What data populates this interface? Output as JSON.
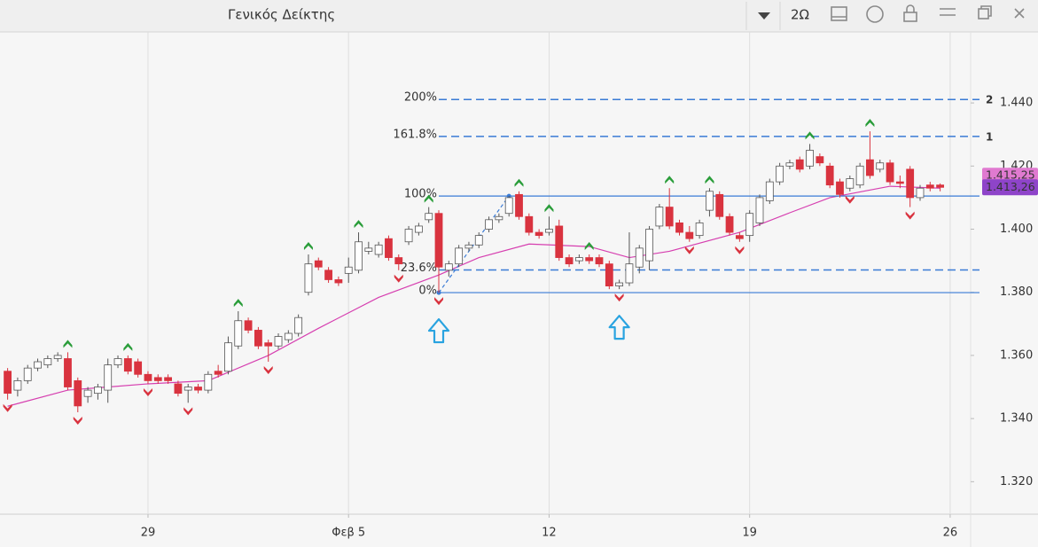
{
  "toolbar": {
    "period": "2Ω"
  },
  "chart_data": {
    "type": "candlestick",
    "title": "Γενικός Δείκτης",
    "up_color": "#ffffff",
    "down_color": "#d9333f",
    "open": [
      1.355,
      1.349,
      1.352,
      1.356,
      1.357,
      1.359,
      1.359,
      1.352,
      1.347,
      1.348,
      1.349,
      1.357,
      1.359,
      1.358,
      1.354,
      1.353,
      1.353,
      1.351,
      1.349,
      1.35,
      1.349,
      1.355,
      1.355,
      1.363,
      1.371,
      1.368,
      1.364,
      1.363,
      1.365,
      1.367,
      1.38,
      1.39,
      1.387,
      1.384,
      1.386,
      1.387,
      1.393,
      1.392,
      1.397,
      1.391,
      1.396,
      1.399,
      1.403,
      1.405,
      1.387,
      1.389,
      1.394,
      1.395,
      1.4,
      1.403,
      1.405,
      1.411,
      1.404,
      1.399,
      1.399,
      1.401,
      1.391,
      1.39,
      1.391,
      1.391,
      1.389,
      1.382,
      1.383,
      1.388,
      1.39,
      1.401,
      1.407,
      1.402,
      1.399,
      1.398,
      1.406,
      1.411,
      1.404,
      1.398,
      1.398,
      1.402,
      1.409,
      1.415,
      1.42,
      1.422,
      1.42,
      1.423,
      1.42,
      1.415,
      1.413,
      1.414,
      1.422,
      1.419,
      1.421,
      1.415,
      1.419,
      1.41,
      1.414,
      1.414
    ],
    "high": [
      1.356,
      1.353,
      1.357,
      1.359,
      1.36,
      1.361,
      1.361,
      1.353,
      1.35,
      1.351,
      1.359,
      1.36,
      1.36,
      1.359,
      1.355,
      1.354,
      1.354,
      1.352,
      1.351,
      1.351,
      1.355,
      1.357,
      1.366,
      1.374,
      1.372,
      1.369,
      1.365,
      1.367,
      1.368,
      1.373,
      1.392,
      1.391,
      1.388,
      1.385,
      1.391,
      1.399,
      1.396,
      1.396,
      1.398,
      1.392,
      1.401,
      1.402,
      1.407,
      1.406,
      1.39,
      1.395,
      1.396,
      1.399,
      1.404,
      1.405,
      1.4105,
      1.412,
      1.405,
      1.4,
      1.404,
      1.403,
      1.392,
      1.392,
      1.392,
      1.392,
      1.39,
      1.384,
      1.399,
      1.395,
      1.401,
      1.408,
      1.413,
      1.403,
      1.401,
      1.403,
      1.413,
      1.412,
      1.405,
      1.399,
      1.406,
      1.411,
      1.416,
      1.421,
      1.422,
      1.423,
      1.427,
      1.424,
      1.421,
      1.416,
      1.417,
      1.421,
      1.431,
      1.422,
      1.422,
      1.417,
      1.42,
      1.414,
      1.415,
      1.4145
    ],
    "low": [
      1.346,
      1.347,
      1.351,
      1.355,
      1.356,
      1.358,
      1.349,
      1.342,
      1.345,
      1.346,
      1.345,
      1.356,
      1.354,
      1.353,
      1.351,
      1.351,
      1.351,
      1.347,
      1.345,
      1.348,
      1.348,
      1.353,
      1.354,
      1.362,
      1.367,
      1.362,
      1.358,
      1.362,
      1.364,
      1.366,
      1.379,
      1.387,
      1.383,
      1.382,
      1.383,
      1.386,
      1.392,
      1.391,
      1.39,
      1.387,
      1.395,
      1.398,
      1.402,
      1.3799,
      1.385,
      1.388,
      1.393,
      1.394,
      1.399,
      1.402,
      1.404,
      1.403,
      1.398,
      1.397,
      1.398,
      1.39,
      1.388,
      1.389,
      1.389,
      1.388,
      1.381,
      1.381,
      1.382,
      1.386,
      1.387,
      1.4,
      1.4,
      1.398,
      1.396,
      1.397,
      1.404,
      1.403,
      1.398,
      1.396,
      1.396,
      1.401,
      1.408,
      1.414,
      1.419,
      1.418,
      1.419,
      1.42,
      1.413,
      1.41,
      1.412,
      1.413,
      1.416,
      1.418,
      1.414,
      1.413,
      1.407,
      1.409,
      1.412,
      1.412
    ],
    "close": [
      1.348,
      1.352,
      1.356,
      1.358,
      1.359,
      1.36,
      1.35,
      1.344,
      1.349,
      1.35,
      1.357,
      1.359,
      1.355,
      1.354,
      1.352,
      1.352,
      1.352,
      1.348,
      1.35,
      1.349,
      1.354,
      1.354,
      1.364,
      1.371,
      1.368,
      1.363,
      1.363,
      1.366,
      1.367,
      1.372,
      1.389,
      1.388,
      1.384,
      1.383,
      1.388,
      1.396,
      1.394,
      1.395,
      1.391,
      1.389,
      1.4,
      1.401,
      1.405,
      1.388,
      1.389,
      1.394,
      1.395,
      1.398,
      1.403,
      1.404,
      1.41,
      1.404,
      1.399,
      1.398,
      1.4,
      1.391,
      1.389,
      1.391,
      1.39,
      1.389,
      1.382,
      1.383,
      1.389,
      1.394,
      1.4,
      1.407,
      1.401,
      1.399,
      1.397,
      1.402,
      1.412,
      1.404,
      1.399,
      1.397,
      1.405,
      1.41,
      1.415,
      1.42,
      1.421,
      1.419,
      1.425,
      1.421,
      1.414,
      1.411,
      1.416,
      1.42,
      1.417,
      1.421,
      1.415,
      1.4145,
      1.41,
      1.413,
      1.413,
      1.41326
    ],
    "moving_average": {
      "color": "#d63fb0",
      "x": [
        0,
        6,
        14,
        20,
        26,
        31,
        37,
        43,
        47,
        52,
        58,
        62,
        66,
        73,
        78,
        82,
        88,
        93
      ],
      "values": [
        1.3439,
        1.349,
        1.351,
        1.352,
        1.36,
        1.3686,
        1.3784,
        1.3855,
        1.391,
        1.3953,
        1.3945,
        1.391,
        1.393,
        1.399,
        1.4052,
        1.41,
        1.4136,
        1.413
      ]
    },
    "up_fractals": [
      6,
      12,
      23,
      30,
      35,
      42,
      51,
      54,
      58,
      66,
      70,
      80,
      86
    ],
    "down_fractals": [
      0,
      7,
      14,
      18,
      26,
      39,
      43,
      61,
      68,
      73,
      84,
      90
    ],
    "signals": [
      43,
      61
    ],
    "fibonacci": {
      "color": "#3a7bd5",
      "start": 43,
      "end": 50,
      "levels": [
        {
          "label": "200%",
          "price": 1.4411,
          "marker": "2"
        },
        {
          "label": "161.8%",
          "price": 1.4294,
          "marker": "1"
        },
        {
          "label": "100%",
          "price": 1.4105
        },
        {
          "label": "23.6%",
          "price": 1.3871
        },
        {
          "label": "0%",
          "price": 1.3799
        }
      ]
    },
    "last_price": {
      "value": 1.41326,
      "label": "1.413,26",
      "color": "#8e44c9"
    },
    "previous_price": {
      "value": 1.41525,
      "label": "1.415,25",
      "color": "#e07ad0"
    },
    "xlim": [
      -0.76,
      96.04
    ],
    "xticks": [
      {
        "value": 14,
        "label": "29"
      },
      {
        "value": 34,
        "label": "Φεβ 5"
      },
      {
        "value": 54,
        "label": "12"
      },
      {
        "value": 74,
        "label": "19"
      },
      {
        "value": 94,
        "label": "26"
      }
    ],
    "ylim": [
      1.3097,
      1.4625
    ],
    "yticks": [
      {
        "value": 1.44,
        "label": "1.440"
      },
      {
        "value": 1.42,
        "label": "1.420"
      },
      {
        "value": 1.4,
        "label": "1.400"
      },
      {
        "value": 1.38,
        "label": "1.380"
      },
      {
        "value": 1.36,
        "label": "1.360"
      },
      {
        "value": 1.34,
        "label": "1.340"
      },
      {
        "value": 1.32,
        "label": "1.320"
      }
    ],
    "grid": "x"
  }
}
